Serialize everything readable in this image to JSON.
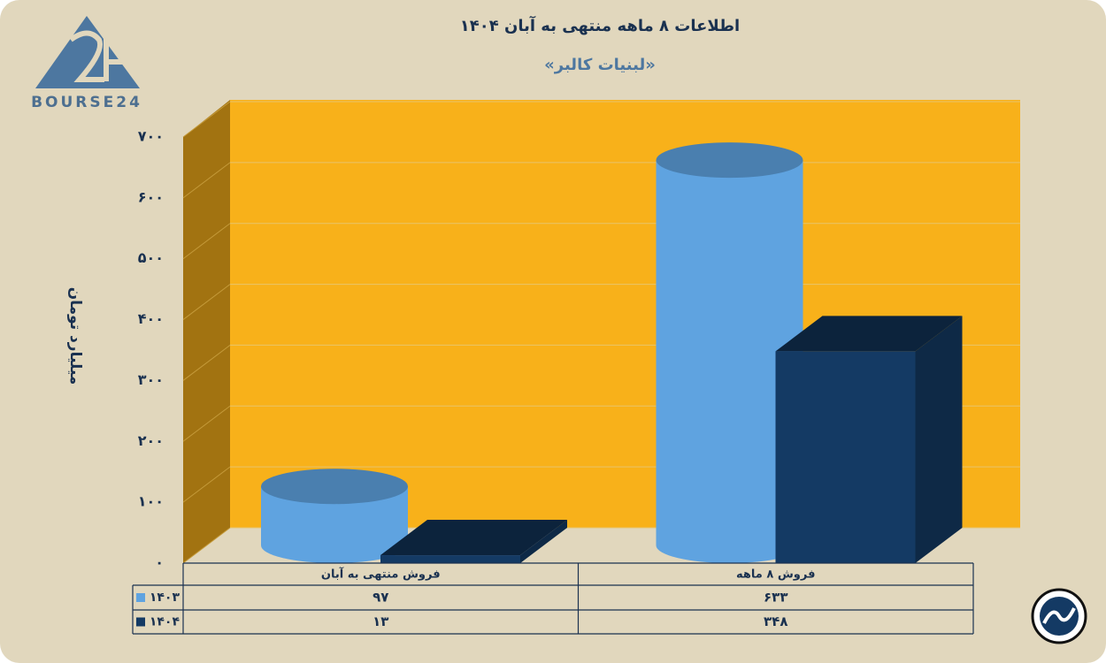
{
  "logo": "BOURSE24",
  "chart_data": {
    "type": "bar3d",
    "title": "اطلاعات ۸ ماهه منتهی به آبان ۱۴۰۴",
    "subtitle": "«لبنیات کالبر»",
    "y_label": "میلیارد تومان",
    "categories": [
      "فروش منتهی به  آبان",
      "فروش ۸  ماهه"
    ],
    "series": [
      {
        "name": "۱۴۰۳",
        "color": "#5fa3e0",
        "shape": "cylinder",
        "values": [
          97,
          633
        ],
        "value_labels": [
          "۹۷",
          "۶۳۳"
        ]
      },
      {
        "name": "۱۴۰۴",
        "color": "#143a64",
        "shape": "box",
        "values": [
          13,
          348
        ],
        "value_labels": [
          "۱۳",
          "۳۴۸"
        ]
      }
    ],
    "ylim": [
      0,
      700
    ],
    "yticks": [
      {
        "value": 0,
        "label": "۰"
      },
      {
        "value": 100,
        "label": "۱۰۰"
      },
      {
        "value": 200,
        "label": "۲۰۰"
      },
      {
        "value": 300,
        "label": "۳۰۰"
      },
      {
        "value": 400,
        "label": "۴۰۰"
      },
      {
        "value": 500,
        "label": "۵۰۰"
      },
      {
        "value": 600,
        "label": "۶۰۰"
      },
      {
        "value": 700,
        "label": "۷۰۰"
      }
    ],
    "grid": true
  }
}
